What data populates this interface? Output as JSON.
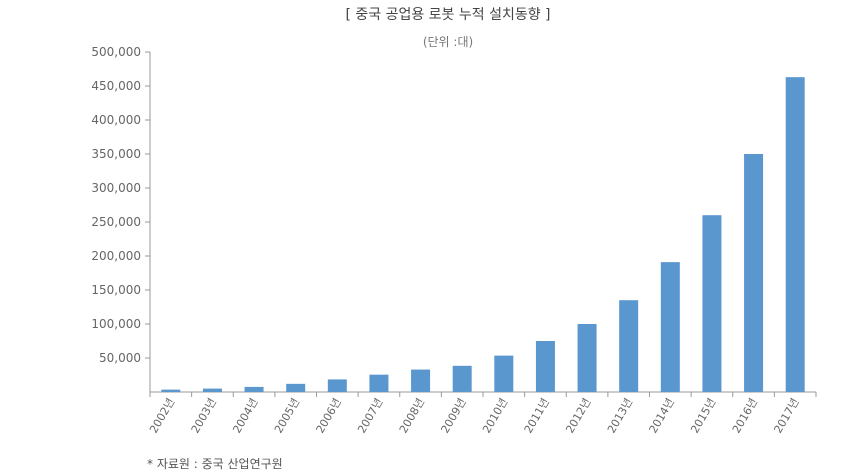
{
  "chart_data": {
    "type": "bar",
    "title": "[ 중국 공업용 로봇 누적 설치동향 ]",
    "unit_note": "(단위 :대)",
    "categories": [
      "2002년",
      "2003년",
      "2004년",
      "2005년",
      "2006년",
      "2007년",
      "2008년",
      "2009년",
      "2010년",
      "2011년",
      "2012년",
      "2013년",
      "2014년",
      "2015년",
      "2016년",
      "2017년"
    ],
    "values": [
      3500,
      5000,
      7500,
      12000,
      18500,
      25500,
      33000,
      38500,
      53500,
      75000,
      100000,
      135000,
      191000,
      260000,
      350000,
      463000
    ],
    "ylim": [
      0,
      500000
    ],
    "yticks": [
      "50,000",
      "100,000",
      "150,000",
      "200,000",
      "250,000",
      "300,000",
      "350,000",
      "400,000",
      "450,000",
      "500,000"
    ],
    "ytick_values": [
      50000,
      100000,
      150000,
      200000,
      250000,
      300000,
      350000,
      400000,
      450000,
      500000
    ],
    "bar_color": "#5b97cf",
    "grid": false,
    "source": "* 자료원 : 중국 산업연구원"
  }
}
